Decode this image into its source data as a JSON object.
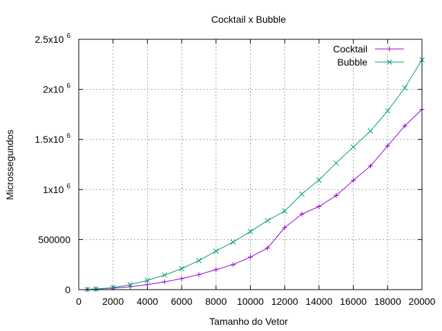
{
  "chart_data": {
    "type": "line",
    "title": "Cocktail x Bubble",
    "xlabel": "Tamanho do Vetor",
    "ylabel": "Microssegundos",
    "xlim": [
      0,
      20000
    ],
    "ylim": [
      0,
      2500000
    ],
    "grid": true,
    "legend_position": "top-right",
    "x_ticks": [
      {
        "value": 0,
        "label": "0"
      },
      {
        "value": 2000,
        "label": "2000"
      },
      {
        "value": 4000,
        "label": "4000"
      },
      {
        "value": 6000,
        "label": "6000"
      },
      {
        "value": 8000,
        "label": "8000"
      },
      {
        "value": 10000,
        "label": "10000"
      },
      {
        "value": 12000,
        "label": "12000"
      },
      {
        "value": 14000,
        "label": "14000"
      },
      {
        "value": 16000,
        "label": "16000"
      },
      {
        "value": 18000,
        "label": "18000"
      },
      {
        "value": 20000,
        "label": "20000"
      }
    ],
    "y_ticks": [
      {
        "value": 0,
        "label": "0",
        "sup": ""
      },
      {
        "value": 500000,
        "label": "500000",
        "sup": ""
      },
      {
        "value": 1000000,
        "label": "1x10",
        "sup": "6"
      },
      {
        "value": 1500000,
        "label": "1.5x10",
        "sup": "6"
      },
      {
        "value": 2000000,
        "label": "2x10",
        "sup": "6"
      },
      {
        "value": 2500000,
        "label": "2.5x10",
        "sup": "6"
      }
    ],
    "x": [
      500,
      1000,
      2000,
      3000,
      4000,
      5000,
      6000,
      7000,
      8000,
      9000,
      10000,
      11000,
      12000,
      13000,
      14000,
      15000,
      16000,
      17000,
      18000,
      19000,
      20000
    ],
    "series": [
      {
        "name": "Cocktail",
        "color": "#9400d3",
        "marker": "plus",
        "values": [
          2000,
          5000,
          15000,
          28000,
          50000,
          78000,
          110000,
          150000,
          200000,
          250000,
          325000,
          415000,
          620000,
          755000,
          830000,
          940000,
          1090000,
          1235000,
          1435000,
          1635000,
          1800000
        ]
      },
      {
        "name": "Bubble",
        "color": "#009e73",
        "marker": "cross",
        "values": [
          3000,
          7000,
          20000,
          50000,
          92000,
          145000,
          210000,
          290000,
          385000,
          475000,
          580000,
          690000,
          785000,
          955000,
          1095000,
          1265000,
          1425000,
          1585000,
          1785000,
          2015000,
          2295000
        ]
      }
    ]
  }
}
